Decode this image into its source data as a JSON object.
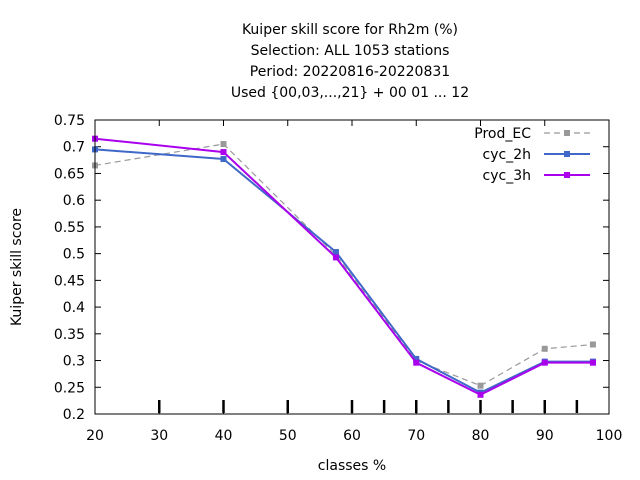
{
  "chart_data": {
    "type": "line",
    "title_lines": [
      "Kuiper skill score  for Rh2m (%)",
      "Selection: ALL    1053 stations",
      "Period: 20220816-20220831",
      "Used {00,03,...,21} + 00 01 ... 12"
    ],
    "xlabel": "classes %",
    "ylabel": "Kuiper skill score",
    "xlim": [
      20,
      100
    ],
    "ylim": [
      0.2,
      0.75
    ],
    "xticks": [
      "20",
      "30",
      "40",
      "50",
      "60",
      "70",
      "80",
      "90",
      "100"
    ],
    "yticks": [
      "0.2",
      "0.25",
      "0.3",
      "0.35",
      "0.4",
      "0.45",
      "0.5",
      "0.55",
      "0.6",
      "0.65",
      "0.7",
      "0.75"
    ],
    "x_minor_marks": [
      30,
      40,
      50,
      60,
      65,
      70,
      75,
      80,
      85,
      90,
      95
    ],
    "grid": false,
    "legend_position": "top-right",
    "series": [
      {
        "name": "Prod_EC",
        "color": "#999999",
        "dashed": true,
        "x": [
          20,
          40,
          57.5,
          70,
          80,
          90,
          97.5
        ],
        "y": [
          0.665,
          0.705,
          0.497,
          0.3,
          0.253,
          0.322,
          0.33
        ]
      },
      {
        "name": "cyc_2h",
        "color": "#3f68c8",
        "dashed": false,
        "x": [
          20,
          40,
          57.5,
          70,
          80,
          90,
          97.5
        ],
        "y": [
          0.695,
          0.677,
          0.503,
          0.303,
          0.24,
          0.298,
          0.298
        ]
      },
      {
        "name": "cyc_3h",
        "color": "#aa00ee",
        "dashed": false,
        "x": [
          20,
          40,
          57.5,
          70,
          80,
          90,
          97.5
        ],
        "y": [
          0.715,
          0.69,
          0.493,
          0.296,
          0.236,
          0.296,
          0.296
        ]
      }
    ]
  }
}
